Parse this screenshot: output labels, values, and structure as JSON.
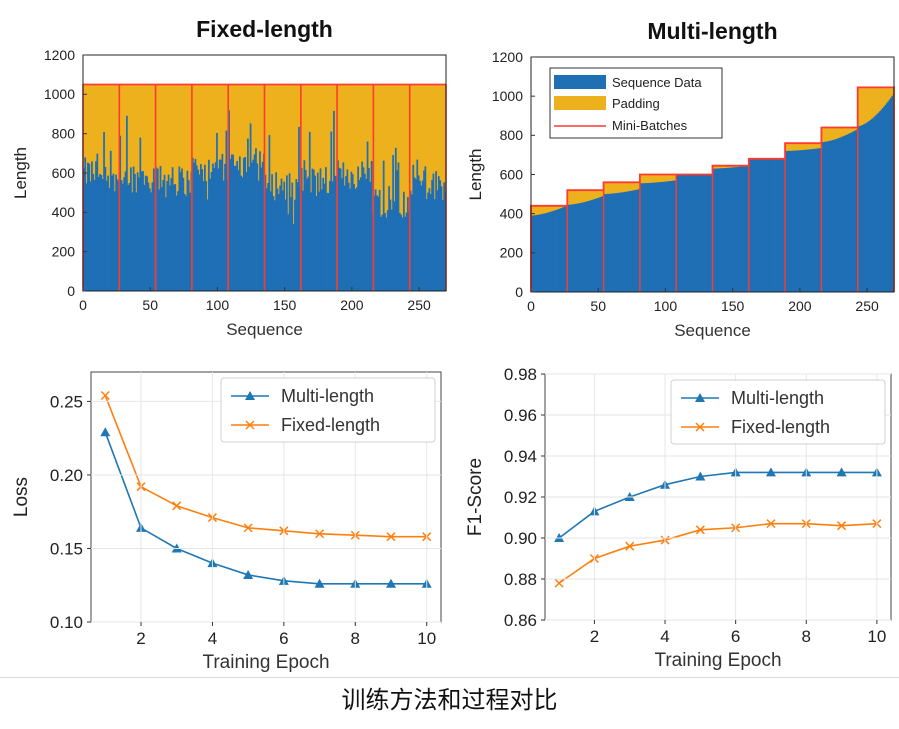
{
  "caption": "训练方法和过程对比",
  "chart_data": [
    {
      "type": "bar",
      "title": "Fixed-length",
      "xlabel": "Sequence",
      "ylabel": "Length",
      "xlim": [
        0,
        270
      ],
      "ylim": [
        0,
        1200
      ],
      "xticks": [
        0,
        50,
        100,
        150,
        200,
        250
      ],
      "yticks": [
        0,
        200,
        400,
        600,
        800,
        1000,
        1200
      ],
      "legend": [],
      "padded_length": 1050,
      "batch_boundaries": [
        0,
        27,
        54,
        81,
        108,
        135,
        162,
        189,
        216,
        243,
        270
      ],
      "series": [
        {
          "name": "Sequence Data",
          "color": "#1f6fb5",
          "segment_base_levels": [
            600,
            580,
            560,
            620,
            650,
            540,
            560,
            590,
            450,
            540
          ]
        },
        {
          "name": "Padding",
          "color": "#eeb11e"
        },
        {
          "name": "Mini-Batches",
          "color": "#ff3a2f"
        }
      ]
    },
    {
      "type": "bar",
      "title": "Multi-length",
      "xlabel": "Sequence",
      "ylabel": "Length",
      "xlim": [
        0,
        270
      ],
      "ylim": [
        0,
        1200
      ],
      "xticks": [
        0,
        50,
        100,
        150,
        200,
        250
      ],
      "yticks": [
        0,
        200,
        400,
        600,
        800,
        1000,
        1200
      ],
      "legend_position": "top-left",
      "batch_boundaries": [
        0,
        27,
        54,
        81,
        108,
        135,
        162,
        189,
        216,
        243,
        270
      ],
      "batch_padded_lengths": [
        440,
        520,
        560,
        600,
        600,
        645,
        680,
        760,
        840,
        1045
      ],
      "batch_data_levels": [
        [
          390,
          440
        ],
        [
          445,
          490
        ],
        [
          500,
          525
        ],
        [
          555,
          570
        ],
        [
          600,
          600
        ],
        [
          630,
          645
        ],
        [
          680,
          680
        ],
        [
          720,
          735
        ],
        [
          765,
          830
        ],
        [
          845,
          1010
        ]
      ],
      "series": [
        {
          "name": "Sequence Data",
          "color": "#1f6fb5"
        },
        {
          "name": "Padding",
          "color": "#eeb11e"
        },
        {
          "name": "Mini-Batches",
          "color": "#ff3a2f"
        }
      ]
    },
    {
      "type": "line",
      "title": "",
      "xlabel": "Training Epoch",
      "ylabel": "Loss",
      "xlim": [
        0.6,
        10.4
      ],
      "ylim": [
        0.1,
        0.27
      ],
      "xticks": [
        2,
        4,
        6,
        8,
        10
      ],
      "yticks": [
        0.1,
        0.15,
        0.2,
        0.25
      ],
      "ytick_labels": [
        "0.10",
        "0.15",
        "0.20",
        "0.25"
      ],
      "grid": true,
      "legend_position": "top-right",
      "x": [
        1,
        2,
        3,
        4,
        5,
        6,
        7,
        8,
        9,
        10
      ],
      "series": [
        {
          "name": "Multi-length",
          "color": "#1f77b4",
          "marker": "triangle",
          "values": [
            0.229,
            0.164,
            0.15,
            0.14,
            0.132,
            0.128,
            0.126,
            0.126,
            0.126,
            0.126
          ]
        },
        {
          "name": "Fixed-length",
          "color": "#ff7f0e",
          "marker": "x",
          "values": [
            0.254,
            0.192,
            0.179,
            0.171,
            0.164,
            0.162,
            0.16,
            0.159,
            0.158,
            0.158
          ]
        }
      ]
    },
    {
      "type": "line",
      "title": "",
      "xlabel": "Training Epoch",
      "ylabel": "F1-Score",
      "xlim": [
        0.6,
        10.4
      ],
      "ylim": [
        0.86,
        0.98
      ],
      "xticks": [
        2,
        4,
        6,
        8,
        10
      ],
      "yticks": [
        0.86,
        0.88,
        0.9,
        0.92,
        0.94,
        0.96,
        0.98
      ],
      "ytick_labels": [
        "0.86",
        "0.88",
        "0.90",
        "0.92",
        "0.94",
        "0.96",
        "0.98"
      ],
      "grid": true,
      "legend_position": "top-right",
      "x": [
        1,
        2,
        3,
        4,
        5,
        6,
        7,
        8,
        9,
        10
      ],
      "series": [
        {
          "name": "Multi-length",
          "color": "#1f77b4",
          "marker": "triangle",
          "values": [
            0.9,
            0.913,
            0.92,
            0.926,
            0.93,
            0.932,
            0.932,
            0.932,
            0.932,
            0.932
          ]
        },
        {
          "name": "Fixed-length",
          "color": "#ff7f0e",
          "marker": "x",
          "values": [
            0.878,
            0.89,
            0.896,
            0.899,
            0.904,
            0.905,
            0.907,
            0.907,
            0.906,
            0.907
          ]
        }
      ]
    }
  ]
}
